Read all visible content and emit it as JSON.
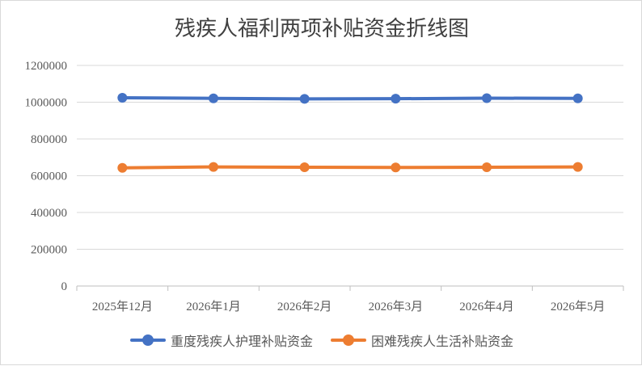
{
  "chart_data": {
    "type": "line",
    "title": "残疾人福利两项补贴资金折线图",
    "xlabel": "",
    "ylabel": "",
    "categories": [
      "2025年12月",
      "2026年1月",
      "2026年2月",
      "2026年3月",
      "2026年4月",
      "2026年5月"
    ],
    "ylim": [
      0,
      1200000
    ],
    "yticks": [
      "0",
      "200000",
      "400000",
      "600000",
      "800000",
      "1000000",
      "1200000"
    ],
    "grid": true,
    "legend_position": "bottom",
    "series": [
      {
        "name": "重度残疾人护理补贴资金",
        "color": "#4472c4",
        "values": [
          1024000,
          1021000,
          1018000,
          1019000,
          1022000,
          1021000
        ]
      },
      {
        "name": "困难残疾人生活补贴资金",
        "color": "#ed7d31",
        "values": [
          643000,
          648000,
          646000,
          645000,
          646000,
          648000
        ]
      }
    ]
  }
}
